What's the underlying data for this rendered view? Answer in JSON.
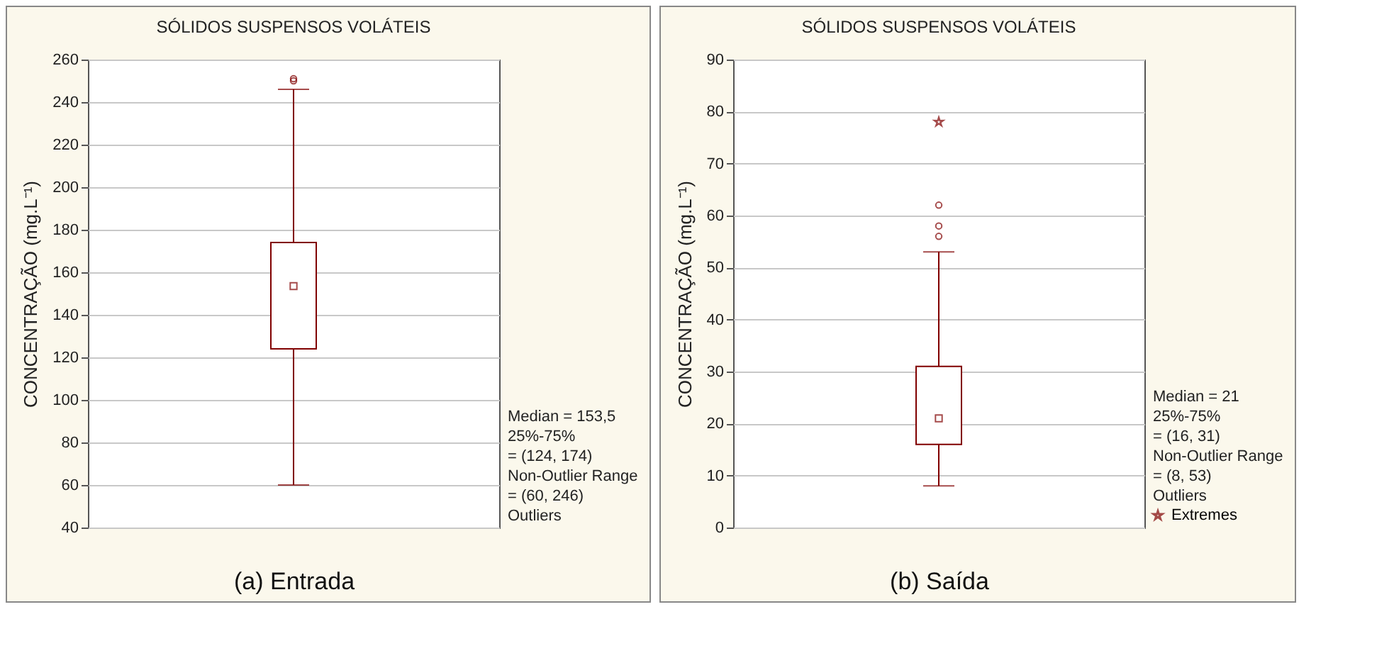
{
  "chart_data": [
    {
      "type": "box",
      "title": "SÓLIDOS SUSPENSOS VOLÁTEIS",
      "xlabel": "(a) Entrada",
      "ylabel": "CONCENTRAÇÃO (mg.L⁻¹)",
      "categories": [
        null
      ],
      "color": "#800000",
      "boxes": [
        {
          "low": 60,
          "q1": 124,
          "median": 153.5,
          "q3": 174,
          "high": 246,
          "outliers": [
            250,
            251
          ]
        }
      ],
      "ylim": [
        40,
        260
      ],
      "yticks": [
        40,
        60,
        80,
        100,
        120,
        140,
        160,
        180,
        200,
        220,
        240,
        260
      ],
      "grid": "y",
      "annotations": [
        "Median = 153,5",
        "25%-75%",
        "= (124, 174)",
        "Non-Outlier Range",
        "= (60, 246)",
        "Outliers"
      ]
    },
    {
      "type": "box",
      "title": "SÓLIDOS SUSPENSOS VOLÁTEIS",
      "xlabel": "(b) Saída",
      "ylabel": "CONCENTRAÇÃO (mg.L⁻¹)",
      "categories": [
        null
      ],
      "color": "#800000",
      "boxes": [
        {
          "low": 8,
          "q1": 16,
          "median": 21,
          "q3": 31,
          "high": 53,
          "outliers": [
            56,
            58,
            62
          ]
        }
      ],
      "series": [
        {
          "type": "scatter",
          "name": "Extremes",
          "color": "#800000",
          "marker": "star",
          "values": [
            78
          ]
        }
      ],
      "ylim": [
        0,
        90
      ],
      "yticks": [
        0,
        10,
        20,
        30,
        40,
        50,
        60,
        70,
        80,
        90
      ],
      "grid": "y",
      "legend": "right",
      "annotations": [
        "Median = 21",
        "25%-75%",
        "= (16, 31)",
        "Non-Outlier Range",
        "= (8, 53)",
        "Outliers"
      ]
    }
  ]
}
